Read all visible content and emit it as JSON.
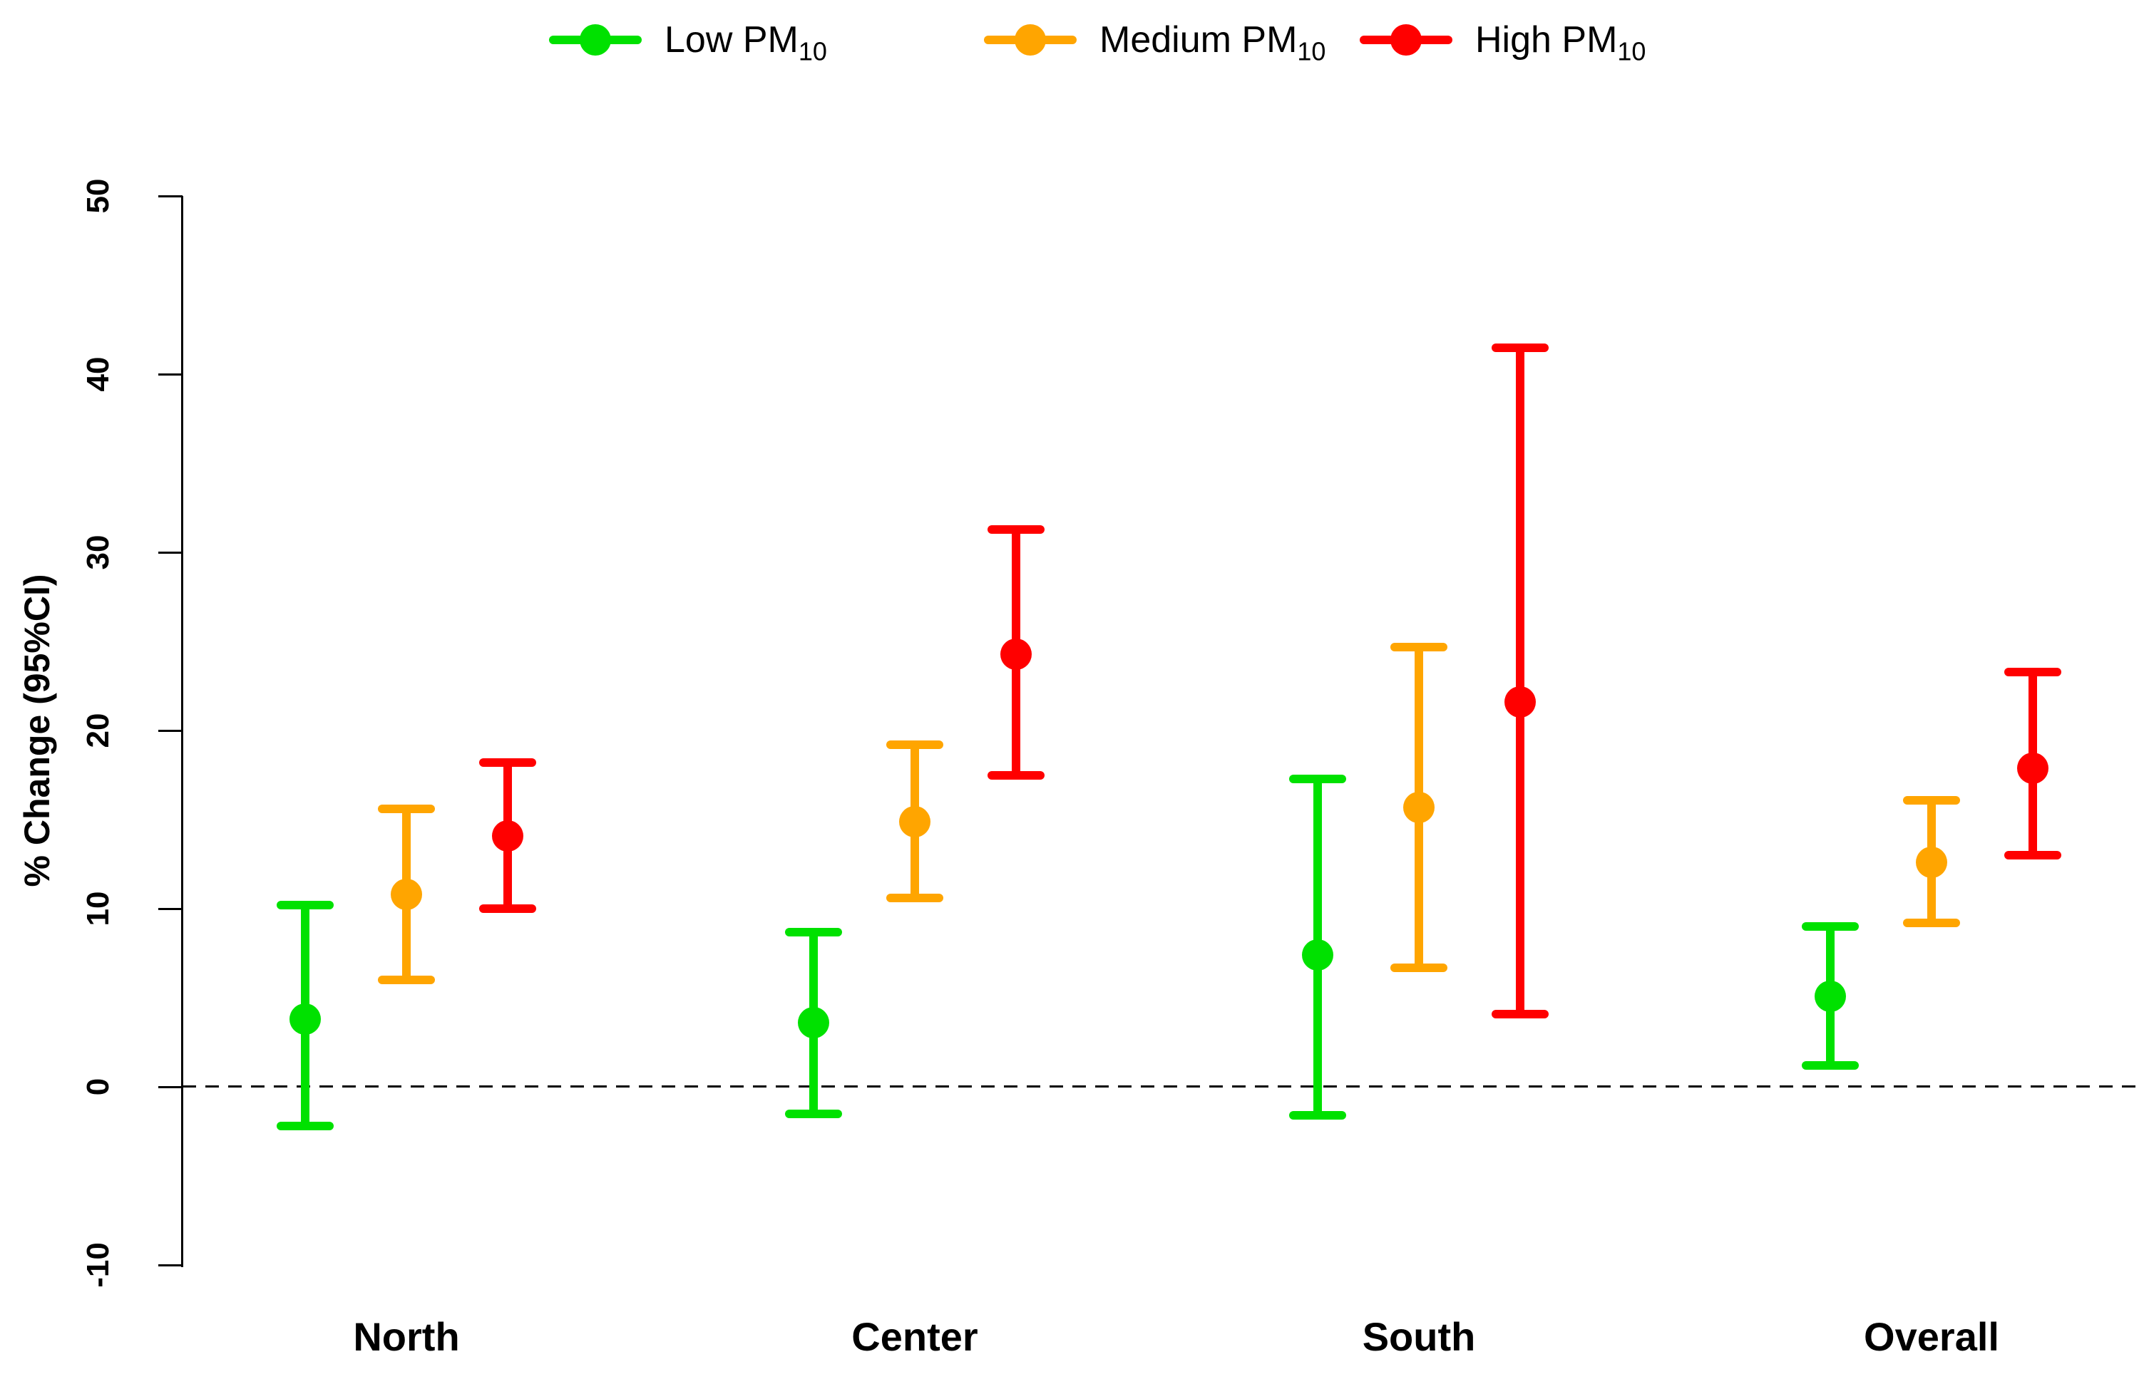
{
  "chart_data": {
    "type": "errorbar",
    "title": "",
    "xlabel": "",
    "ylabel": "% Change (95%CI)",
    "categories": [
      "North",
      "Center",
      "South",
      "Overall"
    ],
    "yticks": [
      50,
      40,
      30,
      20,
      10,
      0,
      -10
    ],
    "ylim": [
      -10,
      50
    ],
    "zero_reference_line": {
      "value": 0,
      "style": "dashed",
      "color": "#000000"
    },
    "grid": "off",
    "legend_position": "top",
    "series": [
      {
        "name": "Low PM10",
        "label_main": "Low PM",
        "label_sub": "10",
        "color": "#00E100",
        "points": [
          {
            "category": "North",
            "value": 3.8,
            "lo": -2.2,
            "hi": 10.2
          },
          {
            "category": "Center",
            "value": 3.6,
            "lo": -1.5,
            "hi": 8.7
          },
          {
            "category": "South",
            "value": 7.4,
            "lo": -1.6,
            "hi": 17.3
          },
          {
            "category": "Overall",
            "value": 5.1,
            "lo": 1.2,
            "hi": 9.0
          }
        ]
      },
      {
        "name": "Medium PM10",
        "label_main": "Medium PM",
        "label_sub": "10",
        "color": "#FFA500",
        "points": [
          {
            "category": "North",
            "value": 10.8,
            "lo": 6.0,
            "hi": 15.6
          },
          {
            "category": "Center",
            "value": 14.9,
            "lo": 10.6,
            "hi": 19.2
          },
          {
            "category": "South",
            "value": 15.7,
            "lo": 6.7,
            "hi": 24.7
          },
          {
            "category": "Overall",
            "value": 12.6,
            "lo": 9.2,
            "hi": 16.1
          }
        ]
      },
      {
        "name": "High PM10",
        "label_main": "High PM",
        "label_sub": "10",
        "color": "#FF0000",
        "points": [
          {
            "category": "North",
            "value": 14.1,
            "lo": 10.0,
            "hi": 18.2
          },
          {
            "category": "Center",
            "value": 24.3,
            "lo": 17.5,
            "hi": 31.3
          },
          {
            "category": "South",
            "value": 21.6,
            "lo": 4.1,
            "hi": 41.5
          },
          {
            "category": "Overall",
            "value": 17.9,
            "lo": 13.0,
            "hi": 23.3
          }
        ]
      }
    ]
  }
}
